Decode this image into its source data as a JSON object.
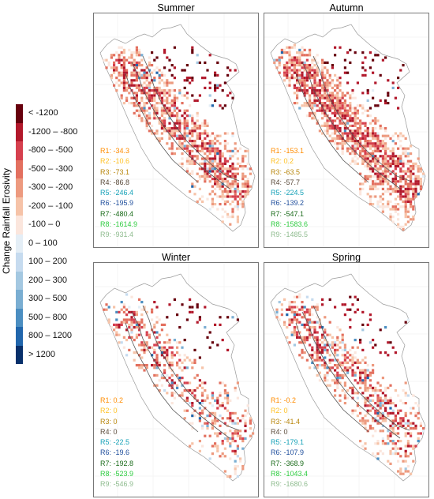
{
  "legend": {
    "title": "Change Rainfall Erosivity",
    "items": [
      {
        "label": "< -1200",
        "color": "#67000d"
      },
      {
        "label": "-1200 – -800",
        "color": "#b2182b"
      },
      {
        "label": "-800 – -500",
        "color": "#d6404e"
      },
      {
        "label": "-500 – -300",
        "color": "#e3705f"
      },
      {
        "label": "-300 – -200",
        "color": "#ed9a7f"
      },
      {
        "label": "-200 – -100",
        "color": "#f6c3a8"
      },
      {
        "label": "-100 – 0",
        "color": "#fbe6dd"
      },
      {
        "label": "0 – 100",
        "color": "#e4eef6"
      },
      {
        "label": "100 – 200",
        "color": "#c6dbef"
      },
      {
        "label": "200 – 300",
        "color": "#a4c8e1"
      },
      {
        "label": "300 – 500",
        "color": "#7aaed2"
      },
      {
        "label": "500 – 800",
        "color": "#4b8ec1"
      },
      {
        "label": "800 – 1200",
        "color": "#2166ac"
      },
      {
        "label": "> 1200",
        "color": "#08306b"
      }
    ]
  },
  "region_colors": [
    "#ff8c00",
    "#ffc125",
    "#b8860b",
    "#5a4a3a",
    "#17a2b8",
    "#1f4e9c",
    "#1a6b1a",
    "#2ecc40",
    "#8fbc8f"
  ],
  "panels": [
    {
      "title": "Summer",
      "seed": 11,
      "intensity": 0.85,
      "blues": 0.05,
      "regions": [
        "R1: -34.3",
        "R2: -10.6",
        "R3: -73.1",
        "R4: -86.8",
        "R5: -246.4",
        "R6: -195.9",
        "R7: -480.4",
        "R8: -1614.9",
        "R9: -931.4"
      ]
    },
    {
      "title": "Autumn",
      "seed": 23,
      "intensity": 0.95,
      "blues": 0.02,
      "regions": [
        "R1: -153.1",
        "R2: 0.2",
        "R3: -63.5",
        "R4: -57.7",
        "R5: -224.5",
        "R6: -139.2",
        "R7: -547.1",
        "R8: -1583.6",
        "R9: -1485.5"
      ]
    },
    {
      "title": "Winter",
      "seed": 37,
      "intensity": 0.45,
      "blues": 0.15,
      "regions": [
        "R1: 0.2",
        "R2: 0",
        "R3: 0",
        "R4: 0",
        "R5: -22.5",
        "R6: -19.6",
        "R7: -192.8",
        "R8: -523.9",
        "R9: -546.9"
      ]
    },
    {
      "title": "Spring",
      "seed": 53,
      "intensity": 0.6,
      "blues": 0.12,
      "regions": [
        "R1: -0.2",
        "R2: 0",
        "R3: -41.4",
        "R4: 0",
        "R5: -179.1",
        "R6: -107.9",
        "R7: -368.9",
        "R8: -1043.4",
        "R9: -1680.6"
      ]
    }
  ]
}
